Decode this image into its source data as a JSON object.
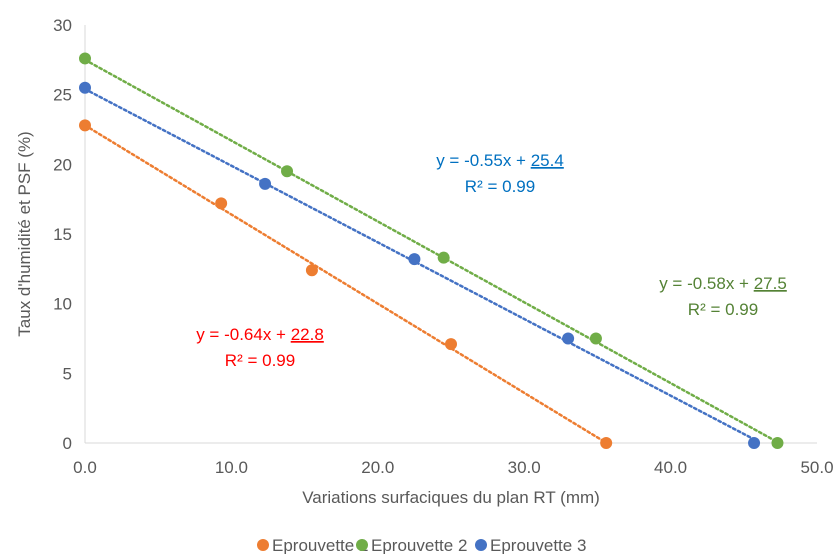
{
  "chart_data": {
    "type": "scatter",
    "xlabel": "Variations surfaciques du plan RT (mm)",
    "ylabel": "Taux d'humidité et PSF (%)",
    "xlim": [
      0,
      50
    ],
    "ylim": [
      0,
      30
    ],
    "x_ticks": [
      "0.0",
      "10.0",
      "20.0",
      "30.0",
      "40.0",
      "50.0"
    ],
    "y_ticks": [
      "0",
      "5",
      "10",
      "15",
      "20",
      "25",
      "30"
    ],
    "grid": false,
    "legend_position": "bottom",
    "series": [
      {
        "name": "Eprouvette 1",
        "color": "#ED7D31",
        "points": [
          [
            0,
            22.8
          ],
          [
            9.3,
            17.2
          ],
          [
            15.5,
            12.4
          ],
          [
            25.0,
            7.1
          ],
          [
            35.6,
            0
          ]
        ],
        "trendline": {
          "slope": -0.64,
          "intercept": 22.8,
          "x_end": 35.6
        },
        "equation_prefix": "y = -0.64x + ",
        "equation_intercept": "22.8",
        "r2": "R² = 0.99",
        "label_color": "#FF0000"
      },
      {
        "name": "Eprouvette 2",
        "color": "#70AD47",
        "points": [
          [
            0,
            27.6
          ],
          [
            13.8,
            19.5
          ],
          [
            24.5,
            13.3
          ],
          [
            34.9,
            7.5
          ],
          [
            47.3,
            0
          ]
        ],
        "trendline": {
          "slope": -0.58,
          "intercept": 27.5,
          "x_end": 47.3
        },
        "equation_prefix": "y = -0.58x + ",
        "equation_intercept": "27.5",
        "r2": "R² = 0.99",
        "label_color": "#548235"
      },
      {
        "name": "Eprouvette 3",
        "color": "#4472C4",
        "points": [
          [
            0,
            25.5
          ],
          [
            12.3,
            18.6
          ],
          [
            22.5,
            13.2
          ],
          [
            33.0,
            7.5
          ],
          [
            45.7,
            0
          ]
        ],
        "trendline": {
          "slope": -0.55,
          "intercept": 25.4,
          "x_end": 45.7
        },
        "equation_prefix": "y = -0.55x + ",
        "equation_intercept": "25.4",
        "r2": "R² = 0.99",
        "label_color": "#0070C0"
      }
    ]
  }
}
